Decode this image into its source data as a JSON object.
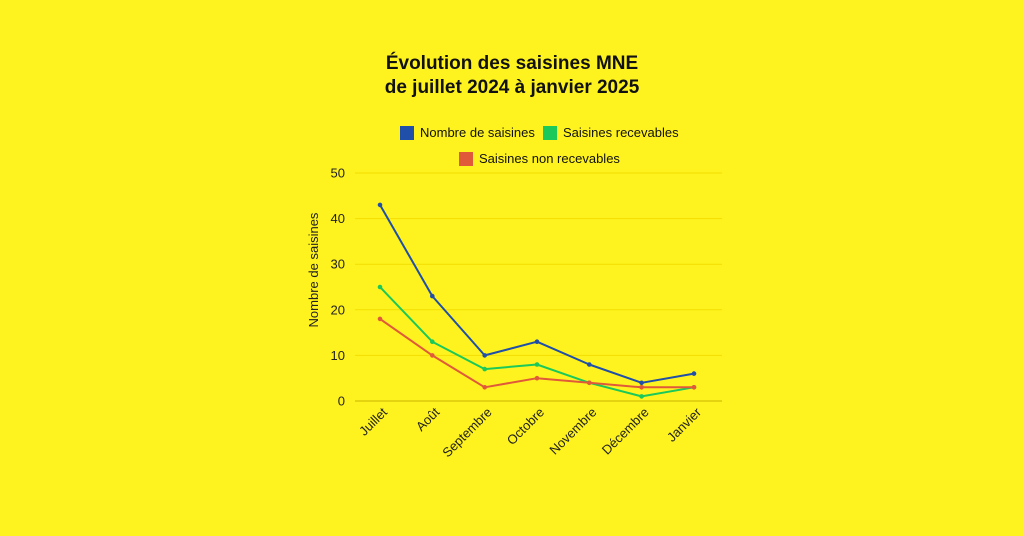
{
  "chart_data": {
    "type": "line",
    "title_line1": "Évolution des saisines MNE",
    "title_line2": "de juillet 2024 à janvier 2025",
    "ylabel": "Nombre de saisines",
    "xlabel": "",
    "categories": [
      "Juillet",
      "Août",
      "Septembre",
      "Octobre",
      "Novembre",
      "Décembre",
      "Janvier"
    ],
    "ylim": [
      0,
      50
    ],
    "yticks": [
      0,
      10,
      20,
      30,
      40,
      50
    ],
    "grid": true,
    "legend_position": "top",
    "series": [
      {
        "name": "Nombre de saisines",
        "color": "#1F4FA8",
        "values": [
          43,
          23,
          10,
          13,
          8,
          4,
          6
        ]
      },
      {
        "name": "Saisines recevables",
        "color": "#1BC85A",
        "values": [
          25,
          13,
          7,
          8,
          4,
          1,
          3
        ]
      },
      {
        "name": "Saisines non recevables",
        "color": "#E05A3A",
        "values": [
          18,
          10,
          3,
          5,
          4,
          3,
          3
        ]
      }
    ]
  },
  "colors": {
    "background": "#FFF31F",
    "grid": "#F2DD00",
    "axis": "#C8B400"
  }
}
